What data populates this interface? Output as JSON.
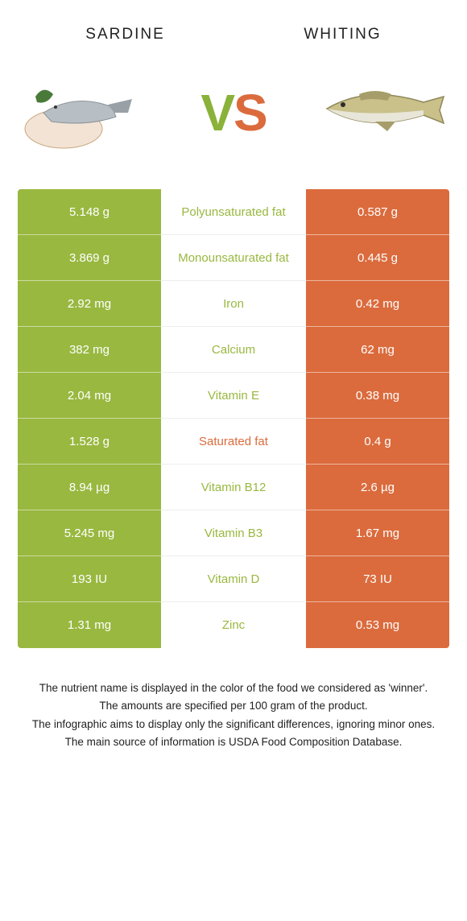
{
  "header": {
    "left_title": "Sardine",
    "right_title": "Whiting",
    "vs": {
      "v": "V",
      "s": "S"
    }
  },
  "colors": {
    "left_bg": "#99b840",
    "right_bg": "#db6b3d",
    "winner_left_text": "#99b840",
    "winner_right_text": "#db6b3d",
    "row_border": "rgba(255,255,255,0.5)",
    "background": "#ffffff"
  },
  "table": {
    "rows": [
      {
        "left": "5.148 g",
        "label": "Polyunsaturated fat",
        "right": "0.587 g",
        "winner": "left"
      },
      {
        "left": "3.869 g",
        "label": "Monounsaturated fat",
        "right": "0.445 g",
        "winner": "left"
      },
      {
        "left": "2.92 mg",
        "label": "Iron",
        "right": "0.42 mg",
        "winner": "left"
      },
      {
        "left": "382 mg",
        "label": "Calcium",
        "right": "62 mg",
        "winner": "left"
      },
      {
        "left": "2.04 mg",
        "label": "Vitamin E",
        "right": "0.38 mg",
        "winner": "left"
      },
      {
        "left": "1.528 g",
        "label": "Saturated fat",
        "right": "0.4 g",
        "winner": "right"
      },
      {
        "left": "8.94 µg",
        "label": "Vitamin B12",
        "right": "2.6 µg",
        "winner": "left"
      },
      {
        "left": "5.245 mg",
        "label": "Vitamin B3",
        "right": "1.67 mg",
        "winner": "left"
      },
      {
        "left": "193 IU",
        "label": "Vitamin D",
        "right": "73 IU",
        "winner": "left"
      },
      {
        "left": "1.31 mg",
        "label": "Zinc",
        "right": "0.53 mg",
        "winner": "left"
      }
    ]
  },
  "footnotes": [
    "The nutrient name is displayed in the color of the food we considered as 'winner'.",
    "The amounts are specified per 100 gram of the product.",
    "The infographic aims to display only the significant differences, ignoring minor ones.",
    "The main source of information is USDA Food Composition Database."
  ]
}
